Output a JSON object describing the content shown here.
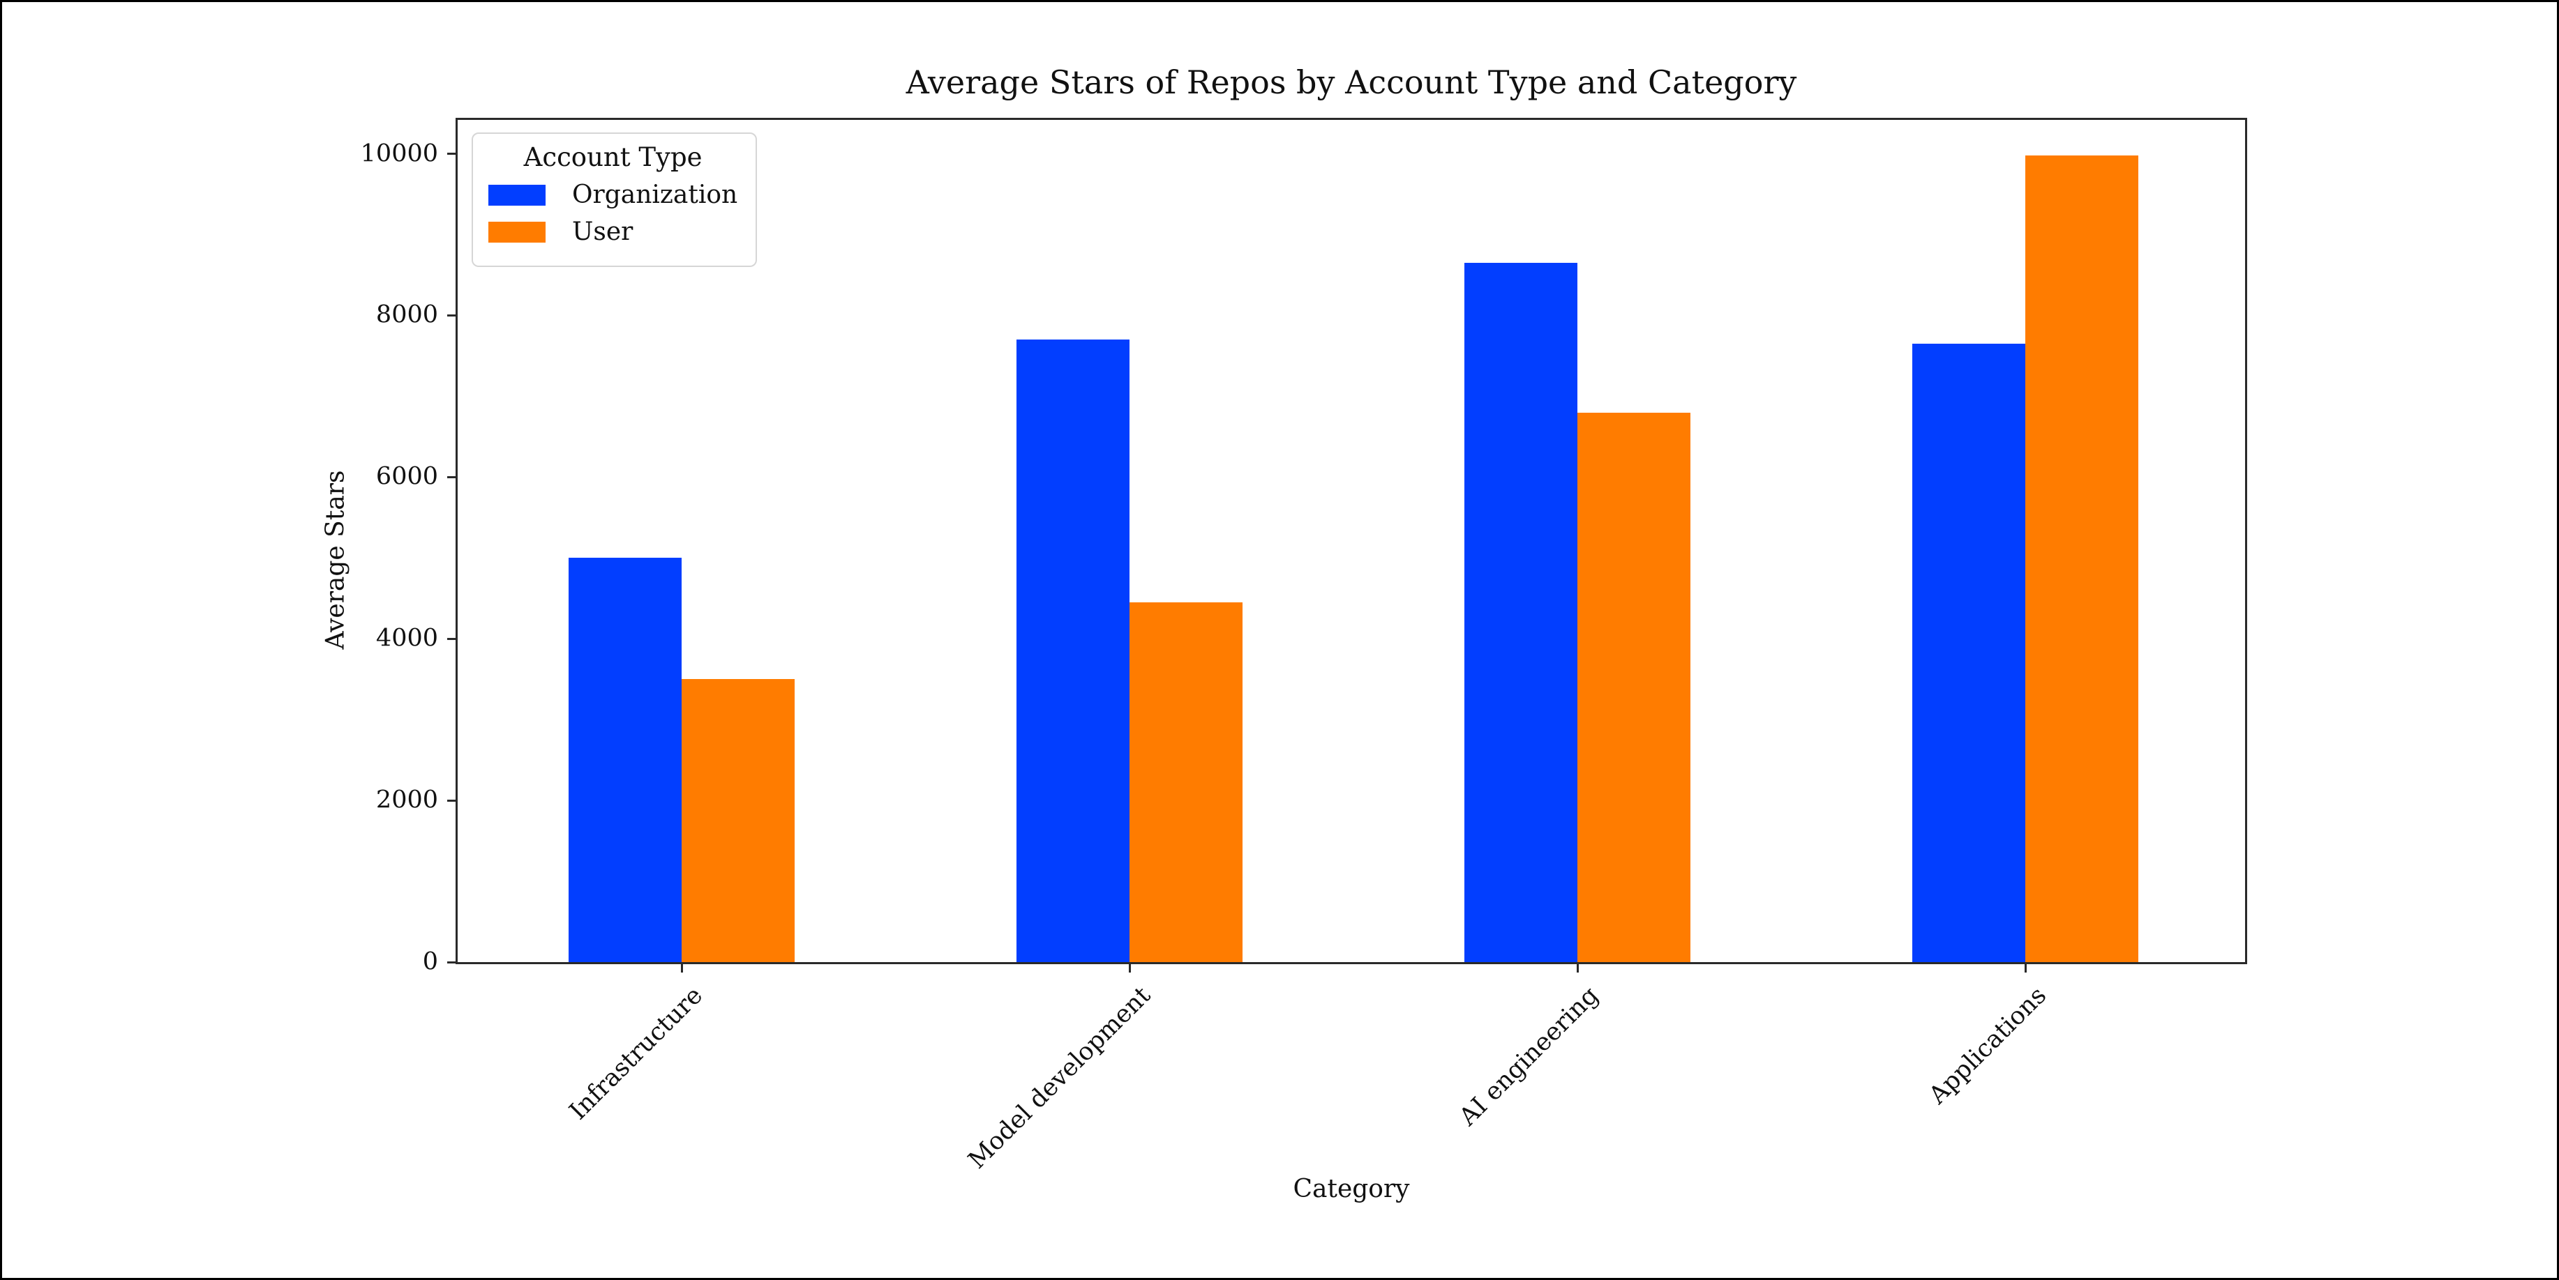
{
  "figure": {
    "background": "#ffffff",
    "frame_border_color": "#000000",
    "spine_color": "#2a2a2a"
  },
  "chart_data": {
    "type": "bar",
    "title": "Average Stars of Repos by Account Type and Category",
    "xlabel": "Category",
    "ylabel": "Average Stars",
    "categories": [
      "Infrastructure",
      "Model development",
      "AI engineering",
      "Applications"
    ],
    "series": [
      {
        "name": "Organization",
        "color": "#023eff",
        "values": [
          5000,
          7700,
          8650,
          7650
        ]
      },
      {
        "name": "User",
        "color": "#ff7c00",
        "values": [
          3500,
          4450,
          6800,
          9980
        ]
      }
    ],
    "yticks": [
      0,
      2000,
      4000,
      6000,
      8000,
      10000
    ],
    "ytick_labels": [
      "0",
      "2000",
      "4000",
      "6000",
      "8000",
      "10000"
    ],
    "ylim": [
      0,
      10470
    ],
    "grid": false,
    "legend": {
      "title": "Account Type",
      "position": "upper-left",
      "entries": [
        "Organization",
        "User"
      ]
    }
  }
}
